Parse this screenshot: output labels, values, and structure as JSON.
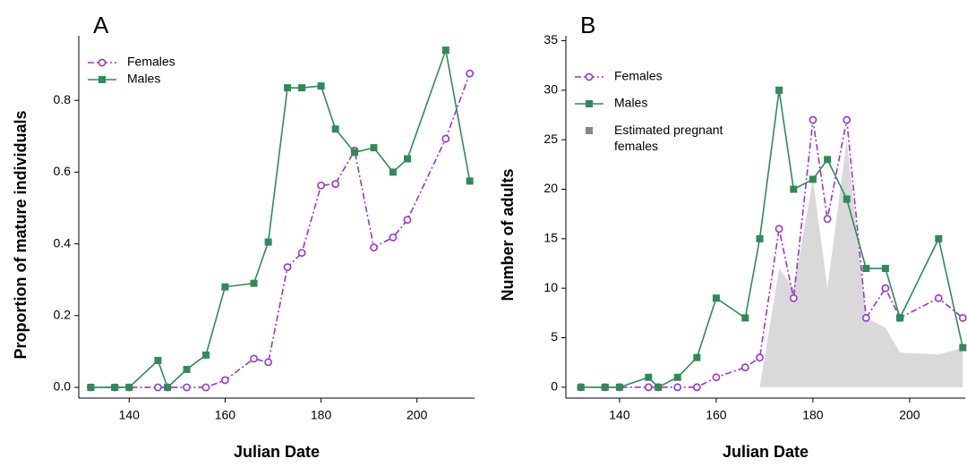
{
  "chart_data": [
    {
      "type": "line",
      "label": "A",
      "xlabel": "Julian Date",
      "ylabel": "Proportion of mature individuals",
      "x": [
        132,
        137,
        140,
        146,
        148,
        152,
        156,
        160,
        166,
        169,
        173,
        176,
        180,
        183,
        187,
        191,
        195,
        198,
        206,
        211
      ],
      "xlim": [
        129.5,
        212
      ],
      "xticks": [
        140,
        160,
        180,
        200
      ],
      "ylim": [
        -0.03,
        0.98
      ],
      "yticks": [
        {
          "value": 0,
          "label": "0.0"
        },
        0.2,
        0.4,
        0.6,
        0.8
      ],
      "series": [
        {
          "name": "Females",
          "color": "#9932d4",
          "values": [
            0,
            0,
            0,
            0,
            0,
            0,
            0,
            0.02,
            0.08,
            0.07,
            0.335,
            0.375,
            0.563,
            0.567,
            0.66,
            0.39,
            0.418,
            0.467,
            0.693,
            0.875
          ]
        },
        {
          "name": "Males",
          "color": "#2e8b57",
          "values": [
            0,
            0,
            0,
            0.075,
            0,
            0.05,
            0.09,
            0.28,
            0.29,
            0.405,
            0.835,
            0.835,
            0.84,
            0.72,
            0.655,
            0.668,
            0.6,
            0.637,
            0.94,
            0.575
          ]
        }
      ]
    },
    {
      "type": "line",
      "label": "B",
      "xlabel": "Julian Date",
      "ylabel": "Number of adults",
      "x": [
        132,
        137,
        140,
        146,
        148,
        152,
        156,
        160,
        166,
        169,
        173,
        176,
        180,
        183,
        187,
        191,
        195,
        198,
        206,
        211
      ],
      "xlim": [
        128.9,
        211.5
      ],
      "xticks": [
        140,
        160,
        180,
        200
      ],
      "ylim": [
        -1.1,
        35.5
      ],
      "yticks": [
        0,
        5,
        10,
        15,
        20,
        25,
        30,
        35
      ],
      "series": [
        {
          "name": "Females",
          "color": "#9932d4",
          "values": [
            0,
            0,
            0,
            0,
            0,
            0,
            0,
            1,
            2,
            3,
            16,
            9,
            27,
            17,
            27,
            7,
            10,
            7,
            9,
            7
          ]
        },
        {
          "name": "Males",
          "color": "#2e8b57",
          "values": [
            0,
            0,
            0,
            1,
            0,
            1,
            3,
            9,
            7,
            15,
            30,
            20,
            21,
            23,
            19,
            12,
            12,
            7,
            15,
            4
          ]
        },
        {
          "name": "Estimated pregnant females",
          "color": "#d9d9d9",
          "x": [
            169,
            173,
            176,
            180,
            183,
            187,
            191,
            195,
            198,
            206,
            211
          ],
          "values": [
            0,
            12,
            10,
            21,
            10,
            25,
            7,
            6,
            3.5,
            3.3,
            4
          ]
        }
      ]
    }
  ]
}
